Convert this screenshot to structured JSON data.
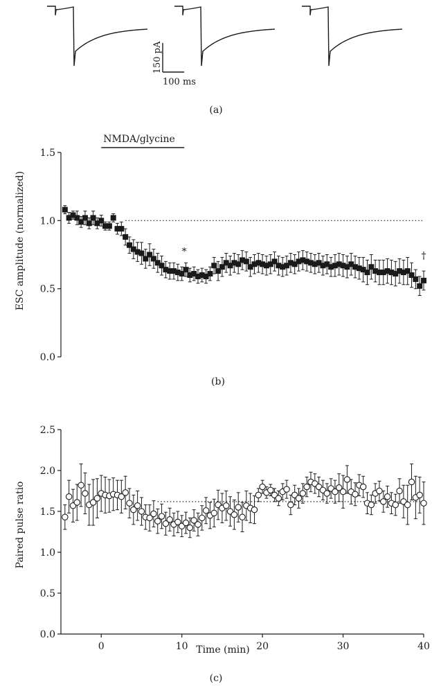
{
  "panels": {
    "a": {
      "label": "(a)",
      "scalebar": {
        "current_label": "150 pA",
        "time_label": "100 ms"
      }
    },
    "b": {
      "label": "(b)",
      "annotation": {
        "bar_label": "NMDA/glycine",
        "bar_start": 0,
        "bar_end": 10.3,
        "star": "*",
        "dagger": "†"
      }
    },
    "c": {
      "label": "(c)"
    }
  },
  "colors": {
    "ink": "#1a1a1a"
  },
  "chart_data": [
    {
      "id": "b",
      "type": "scatter",
      "marker": "filled-square",
      "ylabel": "ESC amplitude (normalized)",
      "xlabel": "",
      "xlim": [
        -5,
        40
      ],
      "ylim": [
        0,
        1.5
      ],
      "yticks": [
        "0.0",
        "0.5",
        "1.0",
        "1.5"
      ],
      "reference_line": 1.0,
      "x": [
        -4.5,
        -4,
        -3.5,
        -3,
        -2.5,
        -2,
        -1.5,
        -1,
        -0.5,
        0,
        0.5,
        1,
        1.5,
        2,
        2.5,
        3,
        3.5,
        4,
        4.5,
        5,
        5.5,
        6,
        6.5,
        7,
        7.5,
        8,
        8.5,
        9,
        9.5,
        10,
        10.5,
        11,
        11.5,
        12,
        12.5,
        13,
        13.5,
        14,
        14.5,
        15,
        15.5,
        16,
        16.5,
        17,
        17.5,
        18,
        18.5,
        19,
        19.5,
        20,
        20.5,
        21,
        21.5,
        22,
        22.5,
        23,
        23.5,
        24,
        24.5,
        25,
        25.5,
        26,
        26.5,
        27,
        27.5,
        28,
        28.5,
        29,
        29.5,
        30,
        30.5,
        31,
        31.5,
        32,
        32.5,
        33,
        33.5,
        34,
        34.5,
        35,
        35.5,
        36,
        36.5,
        37,
        37.5,
        38,
        38.5,
        39,
        39.5,
        40
      ],
      "y": [
        1.08,
        1.02,
        1.04,
        1.02,
        0.99,
        1.02,
        0.98,
        1.02,
        0.98,
        1.0,
        0.96,
        0.96,
        1.02,
        0.94,
        0.94,
        0.88,
        0.82,
        0.79,
        0.77,
        0.76,
        0.72,
        0.75,
        0.72,
        0.69,
        0.67,
        0.64,
        0.63,
        0.63,
        0.62,
        0.61,
        0.64,
        0.6,
        0.61,
        0.59,
        0.6,
        0.59,
        0.61,
        0.67,
        0.63,
        0.66,
        0.69,
        0.67,
        0.69,
        0.68,
        0.71,
        0.7,
        0.66,
        0.68,
        0.69,
        0.68,
        0.67,
        0.68,
        0.7,
        0.67,
        0.66,
        0.67,
        0.69,
        0.68,
        0.7,
        0.71,
        0.7,
        0.69,
        0.68,
        0.69,
        0.67,
        0.68,
        0.66,
        0.67,
        0.68,
        0.67,
        0.66,
        0.68,
        0.66,
        0.65,
        0.64,
        0.62,
        0.66,
        0.63,
        0.62,
        0.62,
        0.63,
        0.62,
        0.61,
        0.63,
        0.62,
        0.63,
        0.6,
        0.57,
        0.52,
        0.56
      ],
      "err": [
        0.03,
        0.04,
        0.03,
        0.05,
        0.04,
        0.05,
        0.04,
        0.05,
        0.04,
        0.04,
        0.03,
        0.03,
        0.03,
        0.04,
        0.05,
        0.06,
        0.06,
        0.07,
        0.07,
        0.08,
        0.07,
        0.08,
        0.07,
        0.07,
        0.07,
        0.06,
        0.06,
        0.06,
        0.06,
        0.05,
        0.05,
        0.05,
        0.05,
        0.05,
        0.05,
        0.05,
        0.05,
        0.06,
        0.07,
        0.07,
        0.07,
        0.07,
        0.07,
        0.07,
        0.07,
        0.07,
        0.07,
        0.07,
        0.07,
        0.07,
        0.07,
        0.07,
        0.07,
        0.07,
        0.07,
        0.07,
        0.07,
        0.07,
        0.07,
        0.07,
        0.07,
        0.07,
        0.07,
        0.07,
        0.07,
        0.07,
        0.07,
        0.08,
        0.08,
        0.08,
        0.08,
        0.08,
        0.08,
        0.08,
        0.09,
        0.09,
        0.09,
        0.08,
        0.09,
        0.09,
        0.09,
        0.09,
        0.09,
        0.09,
        0.09,
        0.1,
        0.09,
        0.07,
        0.07,
        0.07
      ]
    },
    {
      "id": "c",
      "type": "scatter",
      "marker": "open-circle",
      "ylabel": "Paired pulse ratio",
      "xlabel": "Time (min)",
      "xlim": [
        -5,
        40
      ],
      "ylim": [
        0,
        2.5
      ],
      "xticks": [
        "0",
        "10",
        "20",
        "30",
        "40"
      ],
      "yticks": [
        "0.0",
        "0.5",
        "1.0",
        "1.5",
        "2.0",
        "2.5"
      ],
      "reference_line": 1.62,
      "x": [
        -4.5,
        -4,
        -3.5,
        -3,
        -2.5,
        -2,
        -1.5,
        -1,
        -0.5,
        0,
        0.5,
        1,
        1.5,
        2,
        2.5,
        3,
        3.5,
        4,
        4.5,
        5,
        5.5,
        6,
        6.5,
        7,
        7.5,
        8,
        8.5,
        9,
        9.5,
        10,
        10.5,
        11,
        11.5,
        12,
        12.5,
        13,
        13.5,
        14,
        14.5,
        15,
        15.5,
        16,
        16.5,
        17,
        17.5,
        18,
        18.5,
        19,
        19.5,
        20,
        20.5,
        21,
        21.5,
        22,
        22.5,
        23,
        23.5,
        24,
        24.5,
        25,
        25.5,
        26,
        26.5,
        27,
        27.5,
        28,
        28.5,
        29,
        29.5,
        30,
        30.5,
        31,
        31.5,
        32,
        32.5,
        33,
        33.5,
        34,
        34.5,
        35,
        35.5,
        36,
        36.5,
        37,
        37.5,
        38,
        38.5,
        39,
        39.5,
        40
      ],
      "y": [
        1.43,
        1.68,
        1.57,
        1.61,
        1.82,
        1.72,
        1.58,
        1.61,
        1.66,
        1.72,
        1.7,
        1.69,
        1.71,
        1.7,
        1.68,
        1.73,
        1.6,
        1.52,
        1.57,
        1.5,
        1.43,
        1.42,
        1.47,
        1.38,
        1.44,
        1.35,
        1.4,
        1.34,
        1.37,
        1.32,
        1.36,
        1.3,
        1.39,
        1.34,
        1.42,
        1.51,
        1.45,
        1.48,
        1.58,
        1.54,
        1.57,
        1.5,
        1.46,
        1.55,
        1.43,
        1.57,
        1.54,
        1.52,
        1.7,
        1.8,
        1.73,
        1.76,
        1.7,
        1.66,
        1.74,
        1.77,
        1.58,
        1.7,
        1.66,
        1.72,
        1.8,
        1.86,
        1.84,
        1.8,
        1.76,
        1.72,
        1.78,
        1.74,
        1.79,
        1.74,
        1.89,
        1.74,
        1.71,
        1.82,
        1.8,
        1.6,
        1.58,
        1.72,
        1.75,
        1.62,
        1.68,
        1.6,
        1.58,
        1.75,
        1.62,
        1.58,
        1.86,
        1.67,
        1.7,
        1.6
      ],
      "err": [
        0.15,
        0.2,
        0.2,
        0.22,
        0.26,
        0.25,
        0.25,
        0.28,
        0.24,
        0.22,
        0.22,
        0.2,
        0.2,
        0.18,
        0.2,
        0.2,
        0.18,
        0.18,
        0.18,
        0.17,
        0.15,
        0.16,
        0.16,
        0.15,
        0.15,
        0.14,
        0.14,
        0.14,
        0.13,
        0.13,
        0.13,
        0.12,
        0.13,
        0.14,
        0.15,
        0.16,
        0.16,
        0.17,
        0.18,
        0.18,
        0.18,
        0.18,
        0.18,
        0.18,
        0.18,
        0.18,
        0.18,
        0.17,
        0.08,
        0.08,
        0.07,
        0.07,
        0.08,
        0.09,
        0.1,
        0.11,
        0.12,
        0.12,
        0.12,
        0.12,
        0.12,
        0.12,
        0.12,
        0.12,
        0.12,
        0.12,
        0.12,
        0.14,
        0.17,
        0.2,
        0.17,
        0.15,
        0.14,
        0.13,
        0.13,
        0.13,
        0.12,
        0.12,
        0.12,
        0.13,
        0.13,
        0.13,
        0.13,
        0.15,
        0.2,
        0.24,
        0.22,
        0.26,
        0.22,
        0.26
      ]
    }
  ]
}
